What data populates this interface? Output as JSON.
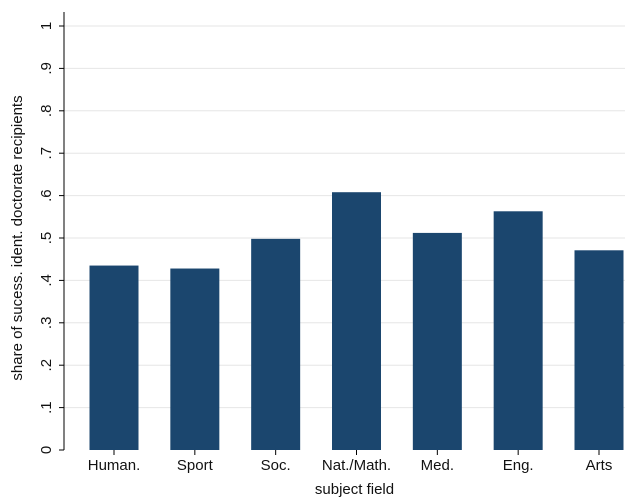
{
  "chart_data": {
    "type": "bar",
    "categories": [
      "Human.",
      "Sport",
      "Soc.",
      "Nat./Math.",
      "Med.",
      "Eng.",
      "Arts"
    ],
    "values": [
      0.435,
      0.428,
      0.498,
      0.608,
      0.512,
      0.563,
      0.471
    ],
    "xlabel": "subject field",
    "ylabel": "share of sucess. ident. doctorate recipients",
    "ylim": [
      0,
      1
    ],
    "yticks": [
      0,
      0.1,
      0.2,
      0.3,
      0.4,
      0.5,
      0.6,
      0.7,
      0.8,
      0.9,
      1
    ],
    "ytick_labels": [
      "0",
      ".1",
      ".2",
      ".3",
      ".4",
      ".5",
      ".6",
      ".7",
      ".8",
      ".9",
      "1"
    ],
    "grid": true,
    "bar_color": "#1b466e"
  }
}
